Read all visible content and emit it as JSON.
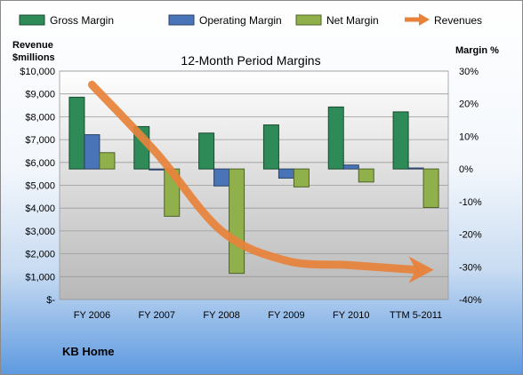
{
  "chart_data": {
    "type": "bar",
    "title": "12-Month Period Margins",
    "company": "KB Home",
    "categories": [
      "FY 2006",
      "FY 2007",
      "FY 2008",
      "FY 2009",
      "FY 2010",
      "TTM 5-2011"
    ],
    "left_axis": {
      "title_line1": "Revenue",
      "title_line2": "$millions",
      "range": [
        0,
        10000
      ],
      "tick_labels": [
        "$-",
        "$1,000",
        "$2,000",
        "$3,000",
        "$4,000",
        "$5,000",
        "$6,000",
        "$7,000",
        "$8,000",
        "$9,000",
        "$10,000"
      ]
    },
    "right_axis": {
      "title": "Margin %",
      "range": [
        -40,
        30
      ],
      "tick_labels": [
        "-40%",
        "-30%",
        "-20%",
        "-10%",
        "0%",
        "10%",
        "20%",
        "30%"
      ]
    },
    "series": [
      {
        "name": "Gross Margin",
        "axis": "right",
        "color": "#2e8b57",
        "values": [
          22,
          13,
          11,
          13.5,
          19,
          17.5
        ]
      },
      {
        "name": "Operating Margin",
        "axis": "right",
        "color": "#4a74b8",
        "values": [
          10.5,
          -0.3,
          -5.2,
          -2.8,
          1.2,
          0.3
        ]
      },
      {
        "name": "Net Margin",
        "axis": "right",
        "color": "#8fb04a",
        "values": [
          5,
          -14.5,
          -32,
          -5.5,
          -4,
          -11.8
        ]
      }
    ],
    "trend": {
      "name": "Revenues",
      "axis": "left",
      "color": "#e8823a",
      "style": "arrow",
      "values": [
        9400,
        6400,
        3000,
        1700,
        1500,
        1300
      ]
    },
    "grid": "horizontal",
    "legend": "top"
  }
}
